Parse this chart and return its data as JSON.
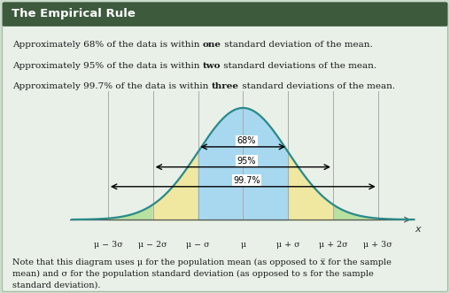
{
  "bg_color": "#cddccd",
  "header_color": "#3d5a3d",
  "header_text": "The Empirical Rule",
  "header_text_color": "#ffffff",
  "body_bg": "#e8f0e8",
  "curve_color": "#2a8a8a",
  "fill_99_color": "#b8e0a0",
  "fill_95_color": "#f0e8a0",
  "fill_68_color": "#a8d8f0",
  "label_68": "68%",
  "label_95": "95%",
  "label_997": "99.7%",
  "tick_labels": [
    "μ − 3σ",
    "μ − 2σ",
    "μ − σ",
    "μ",
    "μ + σ",
    "μ + 2σ",
    "μ + 3σ"
  ],
  "line1_normal": "Approximately 68% of the data is within ",
  "line1_bold": "one",
  "line1_rest": " standard deviation of the mean.",
  "line2_normal": "Approximately 95% of the data is within ",
  "line2_bold": "two",
  "line2_rest": " standard deviations of the mean.",
  "line3_normal": "Approximately 99.7% of the data is within ",
  "line3_bold": "three",
  "line3_rest": " standard deviations of the mean.",
  "note": "Note that this diagram uses μ for the population mean (as opposed to x̅ for the sample\nmean) and σ for the population standard deviation (as opposed to s for the sample\nstandard deviation).",
  "text_color": "#1a1a1a"
}
